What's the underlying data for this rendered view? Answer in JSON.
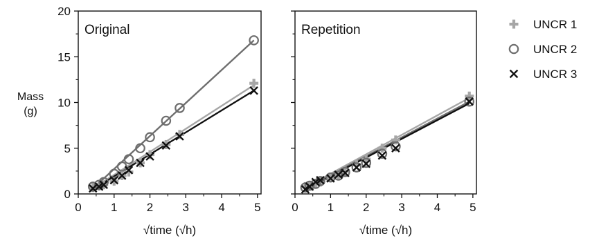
{
  "chart_data": {
    "type": "scatter",
    "ylabel": "Mass",
    "ylabel_unit": "(g)",
    "xlabel": "√time (√h)",
    "x_ticks": [
      "0",
      "1",
      "2",
      "3",
      "4",
      "5"
    ],
    "y_ticks": [
      "0",
      "5",
      "10",
      "15",
      "20"
    ],
    "xlim": [
      0,
      5.1
    ],
    "ylim": [
      0,
      20
    ],
    "shared_y_axis": true,
    "legend_position": "right",
    "legend": [
      {
        "name": "UNCR 1",
        "marker": "plus",
        "color": "#a6a6a6"
      },
      {
        "name": "UNCR 2",
        "marker": "circle",
        "color": "#6e6e6e"
      },
      {
        "name": "UNCR 3",
        "marker": "cross",
        "color": "#111111"
      }
    ],
    "panels": [
      {
        "title": "Original",
        "series": [
          {
            "name": "UNCR 1",
            "points": [
              [
                0.41,
                0.7
              ],
              [
                0.58,
                0.85
              ],
              [
                0.71,
                1.0
              ],
              [
                1.0,
                1.4
              ],
              [
                1.22,
                2.0
              ],
              [
                1.41,
                2.4
              ],
              [
                1.73,
                3.4
              ],
              [
                2.0,
                4.3
              ],
              [
                2.45,
                5.4
              ],
              [
                2.83,
                6.5
              ],
              [
                4.9,
                12.1
              ]
            ],
            "fit": [
              [
                0.41,
                0.6
              ],
              [
                4.9,
                11.9
              ]
            ]
          },
          {
            "name": "UNCR 2",
            "points": [
              [
                0.41,
                0.8
              ],
              [
                0.58,
                1.0
              ],
              [
                0.71,
                1.3
              ],
              [
                1.0,
                2.2
              ],
              [
                1.22,
                3.0
              ],
              [
                1.41,
                3.8
              ],
              [
                1.73,
                5.0
              ],
              [
                2.0,
                6.2
              ],
              [
                2.45,
                8.0
              ],
              [
                2.83,
                9.4
              ],
              [
                4.9,
                16.8
              ]
            ],
            "fit": [
              [
                0.41,
                0.6
              ],
              [
                4.9,
                16.8
              ]
            ]
          },
          {
            "name": "UNCR 3",
            "points": [
              [
                0.41,
                0.6
              ],
              [
                0.58,
                0.8
              ],
              [
                0.71,
                1.0
              ],
              [
                1.0,
                1.5
              ],
              [
                1.22,
                2.0
              ],
              [
                1.41,
                2.6
              ],
              [
                1.73,
                3.4
              ],
              [
                2.0,
                4.1
              ],
              [
                2.45,
                5.3
              ],
              [
                2.83,
                6.3
              ],
              [
                4.9,
                11.3
              ]
            ],
            "fit": [
              [
                0.41,
                0.5
              ],
              [
                4.9,
                11.3
              ]
            ]
          }
        ]
      },
      {
        "title": "Repetition",
        "series": [
          {
            "name": "UNCR 1",
            "points": [
              [
                0.29,
                0.8
              ],
              [
                0.41,
                0.9
              ],
              [
                0.58,
                1.1
              ],
              [
                0.71,
                1.3
              ],
              [
                1.0,
                1.8
              ],
              [
                1.22,
                2.1
              ],
              [
                1.41,
                2.5
              ],
              [
                1.73,
                3.2
              ],
              [
                2.0,
                3.8
              ],
              [
                2.45,
                5.0
              ],
              [
                2.83,
                5.9
              ],
              [
                4.9,
                10.7
              ]
            ],
            "fit": [
              [
                0.29,
                0.7
              ],
              [
                4.9,
                10.5
              ]
            ]
          },
          {
            "name": "UNCR 2",
            "points": [
              [
                0.29,
                0.7
              ],
              [
                0.41,
                0.9
              ],
              [
                0.58,
                1.1
              ],
              [
                0.71,
                1.4
              ],
              [
                1.0,
                1.8
              ],
              [
                1.22,
                2.0
              ],
              [
                1.41,
                2.4
              ],
              [
                1.73,
                2.9
              ],
              [
                2.0,
                3.4
              ],
              [
                2.45,
                4.4
              ],
              [
                2.83,
                5.2
              ],
              [
                4.9,
                10.1
              ]
            ],
            "fit": [
              [
                0.29,
                0.6
              ],
              [
                4.9,
                10.1
              ]
            ]
          },
          {
            "name": "UNCR 3",
            "points": [
              [
                0.29,
                0.5
              ],
              [
                0.41,
                0.8
              ],
              [
                0.58,
                1.3
              ],
              [
                0.71,
                1.5
              ],
              [
                1.0,
                1.7
              ],
              [
                1.22,
                2.1
              ],
              [
                1.41,
                2.3
              ],
              [
                1.73,
                2.9
              ],
              [
                2.0,
                3.3
              ],
              [
                2.45,
                4.2
              ],
              [
                2.83,
                5.0
              ],
              [
                4.9,
                10.1
              ]
            ],
            "fit": [
              [
                0.29,
                0.5
              ],
              [
                4.9,
                9.9
              ]
            ]
          }
        ]
      }
    ]
  }
}
